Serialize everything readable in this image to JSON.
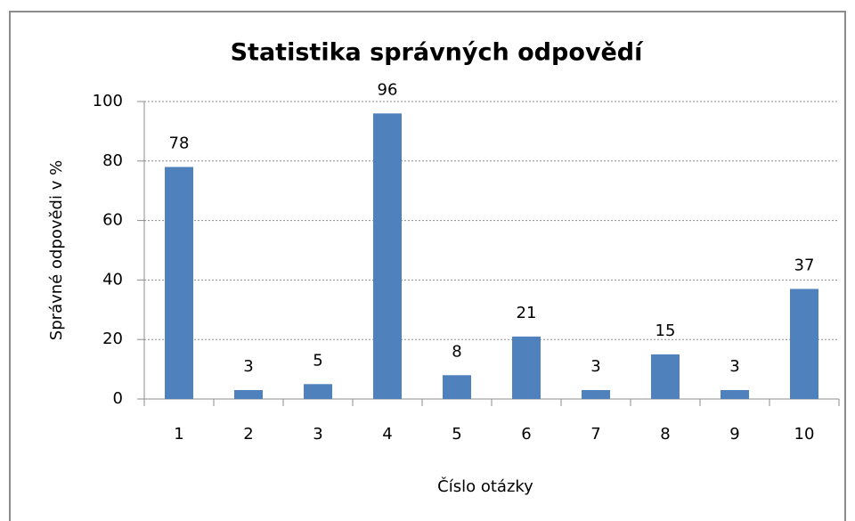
{
  "chart_data": {
    "type": "bar",
    "title": "Statistika správných odpovědí",
    "x_label": "Číslo otázky",
    "y_label": "Správné odpovědi v %",
    "categories": [
      "1",
      "2",
      "3",
      "4",
      "5",
      "6",
      "7",
      "8",
      "9",
      "10"
    ],
    "values": [
      78,
      3,
      5,
      96,
      8,
      21,
      3,
      15,
      3,
      37
    ],
    "color": "#4f81bd",
    "data_labels": true,
    "ylim": [
      0,
      100
    ],
    "yticks": [
      0,
      20,
      40,
      60,
      80,
      100
    ],
    "grid": true
  }
}
